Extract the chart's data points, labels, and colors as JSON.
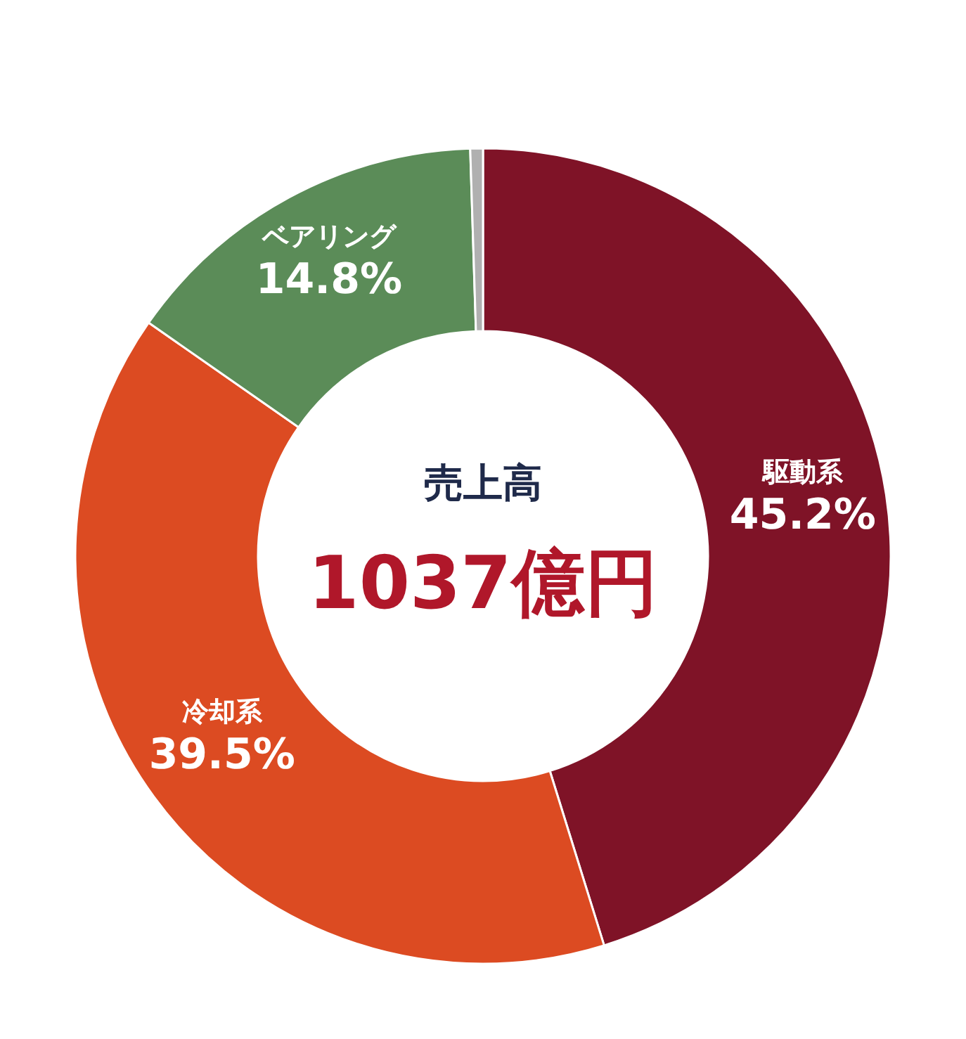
{
  "chart_data": {
    "type": "donut",
    "title": "売上高",
    "annotations": [
      "1037億円"
    ],
    "categories": [
      "駆動系",
      "冷却系",
      "ベアリング",
      null
    ],
    "values": [
      45.2,
      39.5,
      14.8,
      0.5
    ],
    "colors": [
      "#7f1327",
      "#dc4b22",
      "#5b8c58",
      "#b0b0b0"
    ],
    "value_labels": [
      "45.2%",
      "39.5%",
      "14.8%",
      null
    ]
  }
}
